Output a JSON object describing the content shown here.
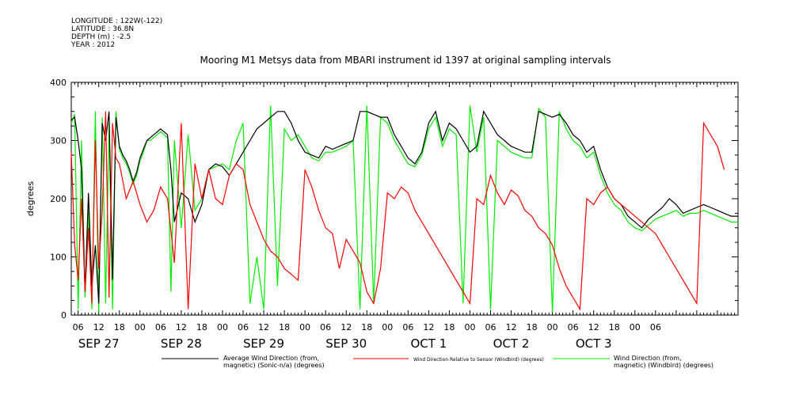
{
  "header": {
    "lines": [
      "LONGITUDE : 122W(-122)",
      "LATITUDE : 36.8N",
      "DEPTH (m) : -2.5",
      "YEAR : 2012"
    ]
  },
  "chart_data": {
    "type": "line",
    "title": "Mooring M1 Metsys data from MBARI instrument id 1397 at original sampling intervals",
    "ylabel": "degrees",
    "xlabel": "",
    "ylim": [
      0,
      400
    ],
    "yticks": [
      0,
      100,
      200,
      300,
      400
    ],
    "xlim_hours": [
      4,
      198
    ],
    "xtick_labels": [
      "06",
      "12",
      "18",
      "00",
      "06",
      "12",
      "18",
      "00",
      "06",
      "12",
      "18",
      "00",
      "06",
      "12",
      "18",
      "00",
      "06",
      "12",
      "18",
      "00",
      "06",
      "12",
      "18",
      "00",
      "06",
      "12",
      "18",
      "00",
      "06"
    ],
    "day_labels": [
      "SEP 27",
      "SEP 28",
      "SEP 29",
      "SEP 30",
      "OCT  1",
      "OCT  2",
      "OCT  3"
    ],
    "grid": false,
    "legend_position": "bottom",
    "series": [
      {
        "name": "Average Wind Direction (from, magnetic) (Sonic-n/a) (degrees)",
        "color": "#000000",
        "x": [
          4,
          5,
          6,
          7,
          8,
          9,
          10,
          11,
          12,
          13,
          14,
          15,
          16,
          17,
          18,
          19,
          20,
          21,
          22,
          23,
          24,
          25,
          26,
          27,
          28,
          30,
          32,
          33,
          34,
          36,
          38,
          40,
          42,
          44,
          46,
          48,
          50,
          52,
          54,
          56,
          58,
          60,
          62,
          64,
          66,
          68,
          70,
          72,
          74,
          76,
          78,
          80,
          82,
          84,
          86,
          88,
          90,
          92,
          94,
          96,
          98,
          100,
          102,
          104,
          106,
          108,
          110,
          112,
          114,
          116,
          118,
          120,
          122,
          124,
          126,
          128,
          130,
          132,
          134,
          136,
          138,
          140,
          142,
          144,
          146,
          148,
          150,
          152,
          154,
          156,
          158,
          160,
          162,
          164,
          166,
          168,
          170,
          172,
          174,
          176,
          178,
          180,
          182,
          184,
          186,
          188,
          190,
          192,
          194,
          196,
          198
        ],
        "y": [
          335,
          340,
          300,
          250,
          40,
          210,
          50,
          120,
          20,
          330,
          300,
          350,
          60,
          340,
          290,
          275,
          265,
          250,
          230,
          245,
          270,
          285,
          300,
          305,
          310,
          320,
          310,
          250,
          160,
          210,
          200,
          160,
          190,
          250,
          260,
          255,
          240,
          260,
          280,
          300,
          320,
          330,
          340,
          350,
          350,
          330,
          300,
          280,
          275,
          270,
          290,
          285,
          290,
          295,
          300,
          350,
          350,
          345,
          340,
          340,
          310,
          290,
          270,
          260,
          280,
          330,
          350,
          300,
          330,
          320,
          300,
          280,
          290,
          350,
          330,
          310,
          300,
          290,
          285,
          280,
          280,
          350,
          345,
          340,
          345,
          330,
          310,
          300,
          280,
          290,
          250,
          220,
          200,
          190,
          170,
          160,
          150,
          165,
          175,
          185,
          200,
          190,
          175,
          180,
          185,
          190,
          185,
          180,
          175,
          170,
          170
        ]
      },
      {
        "name": "Wind Direction Relative to Sensor (Windbird) (degrees)",
        "color": "#ff0000",
        "x": [
          4,
          5,
          6,
          7,
          8,
          9,
          10,
          11,
          12,
          13,
          14,
          15,
          16,
          17,
          18,
          20,
          22,
          24,
          26,
          28,
          30,
          32,
          34,
          36,
          38,
          40,
          42,
          44,
          46,
          48,
          50,
          52,
          54,
          56,
          58,
          60,
          62,
          64,
          66,
          68,
          70,
          72,
          74,
          76,
          78,
          80,
          82,
          84,
          86,
          88,
          90,
          92,
          94,
          96,
          98,
          100,
          102,
          104,
          106,
          108,
          110,
          112,
          114,
          116,
          118,
          120,
          122,
          124,
          126,
          128,
          130,
          132,
          134,
          136,
          138,
          140,
          142,
          144,
          146,
          148,
          150,
          152,
          154,
          156,
          158,
          160,
          162,
          164,
          166,
          168,
          170,
          172,
          174,
          176,
          178,
          180,
          182,
          184,
          186,
          188,
          190,
          192,
          194
        ],
        "y": [
          280,
          120,
          60,
          200,
          40,
          150,
          20,
          300,
          80,
          180,
          350,
          30,
          330,
          270,
          260,
          200,
          230,
          190,
          160,
          180,
          220,
          200,
          90,
          330,
          10,
          260,
          200,
          250,
          200,
          190,
          240,
          260,
          250,
          190,
          160,
          130,
          110,
          100,
          80,
          70,
          60,
          250,
          220,
          180,
          150,
          140,
          80,
          130,
          110,
          90,
          40,
          20,
          80,
          210,
          200,
          220,
          210,
          180,
          160,
          140,
          120,
          100,
          80,
          60,
          40,
          20,
          200,
          190,
          240,
          210,
          190,
          215,
          205,
          180,
          170,
          150,
          140,
          120,
          80,
          50,
          30,
          10,
          200,
          190,
          210,
          220,
          200,
          190,
          180,
          170,
          160,
          150,
          140,
          120,
          100,
          80,
          60,
          40,
          20,
          330,
          310,
          290,
          250
        ]
      },
      {
        "name": "Wind Direction (from, magnetic) (Windbird) (degrees)",
        "color": "#00ee00",
        "x": [
          4,
          5,
          6,
          7,
          8,
          9,
          10,
          11,
          12,
          13,
          14,
          15,
          16,
          17,
          18,
          19,
          20,
          21,
          22,
          23,
          24,
          25,
          26,
          27,
          28,
          30,
          32,
          33,
          34,
          36,
          38,
          40,
          42,
          44,
          46,
          48,
          50,
          52,
          54,
          56,
          58,
          60,
          62,
          64,
          66,
          68,
          70,
          72,
          74,
          76,
          78,
          80,
          82,
          84,
          86,
          88,
          90,
          92,
          94,
          96,
          98,
          100,
          102,
          104,
          106,
          108,
          110,
          112,
          114,
          116,
          118,
          120,
          122,
          124,
          126,
          128,
          130,
          132,
          134,
          136,
          138,
          140,
          142,
          144,
          146,
          148,
          150,
          152,
          154,
          156,
          158,
          160,
          162,
          164,
          166,
          168,
          170,
          172,
          174,
          176,
          178,
          180,
          182,
          184,
          186,
          188,
          190,
          192,
          194,
          196,
          198
        ],
        "y": [
          330,
          345,
          10,
          300,
          30,
          180,
          10,
          350,
          5,
          340,
          20,
          330,
          10,
          350,
          285,
          270,
          260,
          245,
          225,
          240,
          265,
          280,
          300,
          300,
          305,
          315,
          305,
          40,
          300,
          150,
          310,
          180,
          200,
          250,
          255,
          260,
          250,
          300,
          330,
          20,
          100,
          10,
          360,
          50,
          320,
          300,
          310,
          290,
          270,
          265,
          280,
          280,
          285,
          290,
          300,
          10,
          360,
          20,
          340,
          330,
          300,
          280,
          260,
          255,
          275,
          320,
          340,
          290,
          320,
          310,
          20,
          360,
          280,
          340,
          10,
          300,
          290,
          280,
          275,
          270,
          270,
          355,
          340,
          5,
          350,
          320,
          300,
          290,
          270,
          280,
          240,
          210,
          190,
          180,
          160,
          150,
          145,
          155,
          165,
          170,
          175,
          180,
          170,
          175,
          175,
          180,
          175,
          170,
          165,
          160,
          160
        ]
      }
    ]
  }
}
